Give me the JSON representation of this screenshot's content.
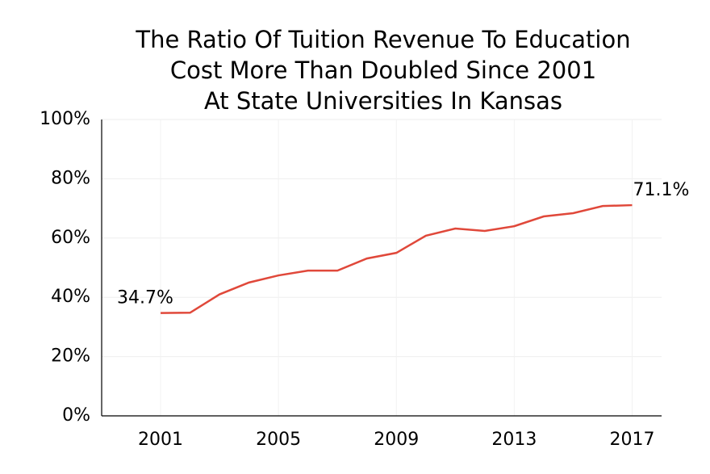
{
  "chart_data": {
    "type": "line",
    "title": "The Ratio Of Tuition Revenue To Education\nCost More Than Doubled Since 2001\nAt State Universities In Kansas",
    "x": [
      2001,
      2002,
      2003,
      2004,
      2005,
      2006,
      2007,
      2008,
      2009,
      2010,
      2011,
      2012,
      2013,
      2014,
      2015,
      2016,
      2017
    ],
    "series": [
      {
        "name": null,
        "color": "#e0483a",
        "values": [
          34.7,
          34.8,
          41,
          45,
          47.4,
          49,
          49,
          53.1,
          55,
          60.8,
          63.2,
          62.4,
          64,
          67.3,
          68.4,
          70.8,
          71.1
        ],
        "value_labels": [
          "34.7%",
          null,
          null,
          null,
          null,
          null,
          null,
          null,
          null,
          null,
          null,
          null,
          null,
          null,
          null,
          null,
          "71.1%"
        ]
      }
    ],
    "xlim": [
      1999,
      2018
    ],
    "xticks": [
      2001,
      2005,
      2009,
      2013,
      2017
    ],
    "ylim": [
      0,
      100
    ],
    "yticks": [
      {
        "value": 0,
        "label": "0%"
      },
      {
        "value": 20,
        "label": "20%"
      },
      {
        "value": 40,
        "label": "40%"
      },
      {
        "value": 60,
        "label": "60%"
      },
      {
        "value": 80,
        "label": "80%"
      },
      {
        "value": 100,
        "label": "100%"
      }
    ],
    "grid": true
  }
}
